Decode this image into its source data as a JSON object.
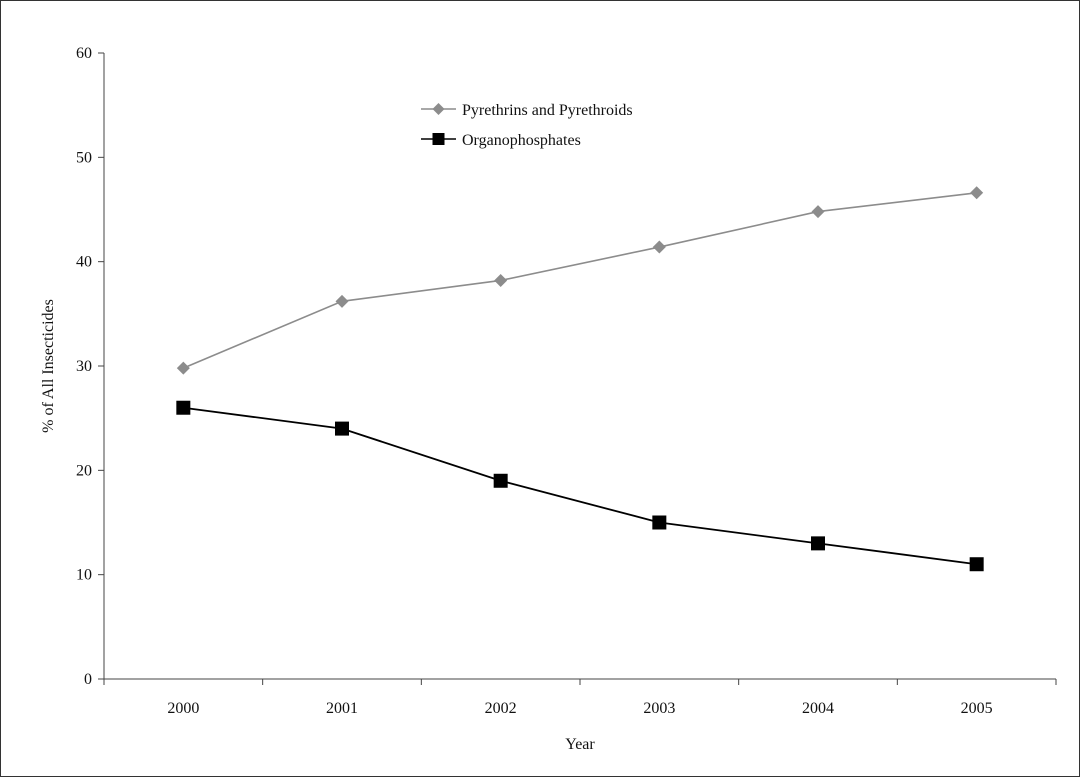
{
  "chart_data": {
    "type": "line",
    "title": "",
    "xlabel": "Year",
    "ylabel": "% of All Insecticides",
    "categories": [
      "2000",
      "2001",
      "2002",
      "2003",
      "2004",
      "2005"
    ],
    "ylim": [
      0,
      60
    ],
    "yticks": [
      0,
      10,
      20,
      30,
      40,
      50,
      60
    ],
    "grid": false,
    "legend_position": "top-center",
    "series": [
      {
        "name": "Pyrethrins and Pyrethroids",
        "marker": "diamond",
        "color": "#8c8c8c",
        "values": [
          29.8,
          36.2,
          38.2,
          41.4,
          44.8,
          46.6
        ]
      },
      {
        "name": "Organophosphates",
        "marker": "square",
        "color": "#000000",
        "values": [
          26,
          24,
          19,
          15,
          13,
          11
        ]
      }
    ]
  }
}
